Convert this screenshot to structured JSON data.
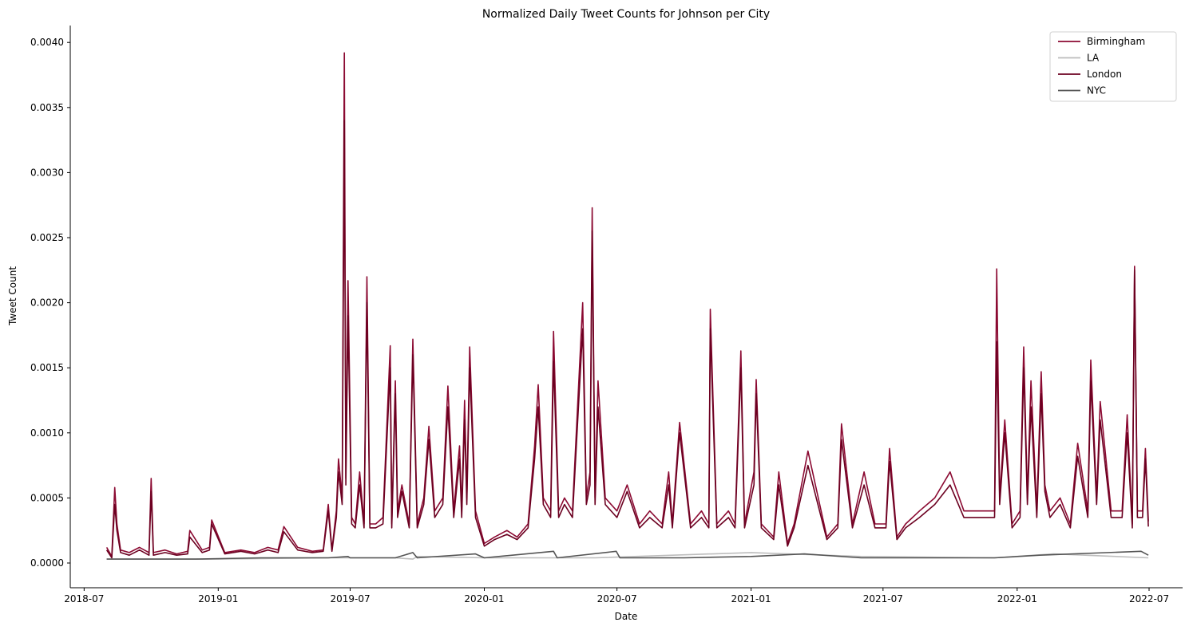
{
  "chart_data": {
    "type": "line",
    "title": "Normalized Daily Tweet Counts for Johnson per City",
    "xlabel": "Date",
    "ylabel": "Tweet Count",
    "xlim": [
      "2018-06-12",
      "2022-08-16"
    ],
    "ylim": [
      -0.00019,
      0.00413
    ],
    "x_ticks": [
      "2018-07",
      "2019-01",
      "2019-07",
      "2020-01",
      "2020-07",
      "2021-01",
      "2021-07",
      "2022-01",
      "2022-07"
    ],
    "y_ticks": [
      0.0,
      0.0005,
      0.001,
      0.0015,
      0.002,
      0.0025,
      0.003,
      0.0035,
      0.004
    ],
    "y_tick_labels": [
      "0.0000",
      "0.0005",
      "0.0010",
      "0.0015",
      "0.0020",
      "0.0025",
      "0.0030",
      "0.0035",
      "0.0040"
    ],
    "grid": false,
    "legend_position": "top-right",
    "series": [
      {
        "name": "Birmingham",
        "color": "#8b0a32",
        "x": [
          "2018-08-01",
          "2018-08-08",
          "2018-08-12",
          "2018-08-15",
          "2018-08-20",
          "2018-09-01",
          "2018-09-15",
          "2018-09-28",
          "2018-10-01",
          "2018-10-04",
          "2018-10-20",
          "2018-11-05",
          "2018-11-20",
          "2018-11-23",
          "2018-12-10",
          "2018-12-20",
          "2018-12-23",
          "2019-01-10",
          "2019-02-01",
          "2019-02-20",
          "2019-03-10",
          "2019-03-24",
          "2019-04-01",
          "2019-04-20",
          "2019-05-10",
          "2019-05-25",
          "2019-06-01",
          "2019-06-06",
          "2019-06-12",
          "2019-06-15",
          "2019-06-20",
          "2019-06-23",
          "2019-06-25",
          "2019-06-28",
          "2019-07-03",
          "2019-07-08",
          "2019-07-14",
          "2019-07-20",
          "2019-07-24",
          "2019-07-28",
          "2019-08-05",
          "2019-08-15",
          "2019-08-25",
          "2019-08-27",
          "2019-09-01",
          "2019-09-04",
          "2019-09-10",
          "2019-09-20",
          "2019-09-25",
          "2019-10-01",
          "2019-10-10",
          "2019-10-17",
          "2019-10-25",
          "2019-11-05",
          "2019-11-12",
          "2019-11-20",
          "2019-11-28",
          "2019-12-01",
          "2019-12-05",
          "2019-12-08",
          "2019-12-12",
          "2019-12-20",
          "2020-01-01",
          "2020-01-15",
          "2020-02-01",
          "2020-02-15",
          "2020-03-01",
          "2020-03-10",
          "2020-03-15",
          "2020-03-22",
          "2020-04-01",
          "2020-04-05",
          "2020-04-12",
          "2020-04-20",
          "2020-05-01",
          "2020-05-15",
          "2020-05-20",
          "2020-05-25",
          "2020-05-28",
          "2020-06-01",
          "2020-06-05",
          "2020-06-15",
          "2020-07-01",
          "2020-07-15",
          "2020-08-01",
          "2020-08-15",
          "2020-09-01",
          "2020-09-10",
          "2020-09-15",
          "2020-09-25",
          "2020-10-10",
          "2020-10-25",
          "2020-11-04",
          "2020-11-06",
          "2020-11-15",
          "2020-12-01",
          "2020-12-10",
          "2020-12-18",
          "2020-12-23",
          "2021-01-05",
          "2021-01-08",
          "2021-01-15",
          "2021-02-01",
          "2021-02-08",
          "2021-02-20",
          "2021-03-01",
          "2021-03-20",
          "2021-04-15",
          "2021-04-30",
          "2021-05-05",
          "2021-05-20",
          "2021-06-05",
          "2021-06-20",
          "2021-07-05",
          "2021-07-10",
          "2021-07-20",
          "2021-08-01",
          "2021-08-20",
          "2021-09-10",
          "2021-10-01",
          "2021-10-20",
          "2021-11-10",
          "2021-11-25",
          "2021-12-01",
          "2021-12-04",
          "2021-12-08",
          "2021-12-15",
          "2021-12-25",
          "2022-01-05",
          "2022-01-10",
          "2022-01-15",
          "2022-01-20",
          "2022-01-28",
          "2022-02-03",
          "2022-02-08",
          "2022-02-15",
          "2022-03-01",
          "2022-03-15",
          "2022-03-25",
          "2022-04-08",
          "2022-04-12",
          "2022-04-20",
          "2022-04-25",
          "2022-05-10",
          "2022-05-25",
          "2022-06-01",
          "2022-06-08",
          "2022-06-11",
          "2022-06-15",
          "2022-06-22",
          "2022-06-26",
          "2022-06-30"
        ],
        "values": [
          0.00012,
          5e-05,
          0.00058,
          0.0003,
          0.0001,
          8e-05,
          0.00012,
          8e-05,
          0.00065,
          8e-05,
          0.0001,
          7e-05,
          9e-05,
          0.00025,
          0.0001,
          0.00012,
          0.00033,
          8e-05,
          0.0001,
          8e-05,
          0.00012,
          0.0001,
          0.00028,
          0.00012,
          9e-05,
          0.0001,
          0.00045,
          0.0001,
          0.0004,
          0.0008,
          0.0005,
          0.00392,
          0.00065,
          0.00217,
          0.00035,
          0.0003,
          0.0007,
          0.0003,
          0.0022,
          0.0003,
          0.0003,
          0.00035,
          0.00167,
          0.0003,
          0.0014,
          0.0004,
          0.0006,
          0.0003,
          0.00172,
          0.0003,
          0.0005,
          0.00105,
          0.0004,
          0.0005,
          0.00136,
          0.0004,
          0.0009,
          0.0004,
          0.00125,
          0.0005,
          0.00166,
          0.0004,
          0.00015,
          0.0002,
          0.00025,
          0.0002,
          0.0003,
          0.0009,
          0.00137,
          0.0005,
          0.0004,
          0.00178,
          0.0004,
          0.0005,
          0.0004,
          0.002,
          0.0005,
          0.0007,
          0.00273,
          0.0005,
          0.0014,
          0.0005,
          0.0004,
          0.0006,
          0.0003,
          0.0004,
          0.0003,
          0.0007,
          0.0003,
          0.00108,
          0.0003,
          0.0004,
          0.0003,
          0.00195,
          0.0003,
          0.0004,
          0.0003,
          0.00163,
          0.0003,
          0.0007,
          0.00141,
          0.0003,
          0.0002,
          0.0007,
          0.00015,
          0.0003,
          0.00086,
          0.0002,
          0.0003,
          0.00107,
          0.0003,
          0.0007,
          0.0003,
          0.0003,
          0.00088,
          0.0002,
          0.0003,
          0.0004,
          0.0005,
          0.0007,
          0.0004,
          0.0004,
          0.0004,
          0.0004,
          0.00226,
          0.0005,
          0.0011,
          0.0003,
          0.0004,
          0.00166,
          0.0005,
          0.0014,
          0.0004,
          0.00147,
          0.0006,
          0.0004,
          0.0005,
          0.0003,
          0.00092,
          0.0004,
          0.00156,
          0.0005,
          0.00124,
          0.0004,
          0.0004,
          0.00114,
          0.0003,
          0.00228,
          0.0004,
          0.0004,
          0.00088,
          0.00032
        ]
      },
      {
        "name": "LA",
        "color": "#bdbdbd",
        "x": [
          "2018-08-01",
          "2019-01-01",
          "2019-06-01",
          "2019-09-01",
          "2019-09-25",
          "2019-10-01",
          "2020-01-01",
          "2020-06-01",
          "2021-01-01",
          "2021-06-01",
          "2021-12-01",
          "2022-02-20",
          "2022-06-30"
        ],
        "values": [
          3e-05,
          3e-05,
          4e-05,
          4e-05,
          3e-05,
          5e-05,
          4e-05,
          4e-05,
          8e-05,
          5e-05,
          4e-05,
          7e-05,
          4e-05
        ]
      },
      {
        "name": "London",
        "color": "#6b0020",
        "x": [
          "2018-08-01",
          "2018-08-08",
          "2018-08-12",
          "2018-08-15",
          "2018-08-20",
          "2018-09-01",
          "2018-09-15",
          "2018-09-28",
          "2018-10-01",
          "2018-10-04",
          "2018-10-20",
          "2018-11-05",
          "2018-11-20",
          "2018-11-23",
          "2018-12-10",
          "2018-12-20",
          "2018-12-23",
          "2019-01-10",
          "2019-02-01",
          "2019-02-20",
          "2019-03-10",
          "2019-03-24",
          "2019-04-01",
          "2019-04-20",
          "2019-05-10",
          "2019-05-25",
          "2019-06-01",
          "2019-06-06",
          "2019-06-12",
          "2019-06-15",
          "2019-06-20",
          "2019-06-23",
          "2019-06-25",
          "2019-06-28",
          "2019-07-03",
          "2019-07-08",
          "2019-07-14",
          "2019-07-20",
          "2019-07-24",
          "2019-07-28",
          "2019-08-05",
          "2019-08-15",
          "2019-08-25",
          "2019-08-27",
          "2019-09-01",
          "2019-09-04",
          "2019-09-10",
          "2019-09-20",
          "2019-09-25",
          "2019-10-01",
          "2019-10-10",
          "2019-10-17",
          "2019-10-25",
          "2019-11-05",
          "2019-11-12",
          "2019-11-20",
          "2019-11-28",
          "2019-12-01",
          "2019-12-05",
          "2019-12-08",
          "2019-12-12",
          "2019-12-20",
          "2020-01-01",
          "2020-01-15",
          "2020-02-01",
          "2020-02-15",
          "2020-03-01",
          "2020-03-10",
          "2020-03-15",
          "2020-03-22",
          "2020-04-01",
          "2020-04-05",
          "2020-04-12",
          "2020-04-20",
          "2020-05-01",
          "2020-05-15",
          "2020-05-20",
          "2020-05-25",
          "2020-05-28",
          "2020-06-01",
          "2020-06-05",
          "2020-06-15",
          "2020-07-01",
          "2020-07-15",
          "2020-08-01",
          "2020-08-15",
          "2020-09-01",
          "2020-09-10",
          "2020-09-15",
          "2020-09-25",
          "2020-10-10",
          "2020-10-25",
          "2020-11-04",
          "2020-11-06",
          "2020-11-15",
          "2020-12-01",
          "2020-12-10",
          "2020-12-18",
          "2020-12-23",
          "2021-01-05",
          "2021-01-08",
          "2021-01-15",
          "2021-02-01",
          "2021-02-08",
          "2021-02-20",
          "2021-03-01",
          "2021-03-20",
          "2021-04-15",
          "2021-04-30",
          "2021-05-05",
          "2021-05-20",
          "2021-06-05",
          "2021-06-20",
          "2021-07-05",
          "2021-07-10",
          "2021-07-20",
          "2021-08-01",
          "2021-08-20",
          "2021-09-10",
          "2021-10-01",
          "2021-10-20",
          "2021-11-10",
          "2021-11-25",
          "2021-12-01",
          "2021-12-04",
          "2021-12-08",
          "2021-12-15",
          "2021-12-25",
          "2022-01-05",
          "2022-01-10",
          "2022-01-15",
          "2022-01-20",
          "2022-01-28",
          "2022-02-03",
          "2022-02-08",
          "2022-02-15",
          "2022-03-01",
          "2022-03-15",
          "2022-03-25",
          "2022-04-08",
          "2022-04-12",
          "2022-04-20",
          "2022-04-25",
          "2022-05-10",
          "2022-05-25",
          "2022-06-01",
          "2022-06-08",
          "2022-06-11",
          "2022-06-15",
          "2022-06-22",
          "2022-06-26",
          "2022-06-30"
        ],
        "values": [
          0.0001,
          4e-05,
          0.00045,
          0.00025,
          8e-05,
          6e-05,
          0.0001,
          6e-05,
          0.00055,
          6e-05,
          8e-05,
          6e-05,
          7e-05,
          0.0002,
          8e-05,
          0.0001,
          0.0003,
          7e-05,
          9e-05,
          7e-05,
          0.0001,
          8e-05,
          0.00024,
          0.0001,
          8e-05,
          9e-05,
          0.0004,
          9e-05,
          0.00035,
          0.0007,
          0.00045,
          0.0034,
          0.0006,
          0.0019,
          0.0003,
          0.00027,
          0.0006,
          0.00027,
          0.002,
          0.00027,
          0.00027,
          0.0003,
          0.0015,
          0.00027,
          0.0013,
          0.00035,
          0.00055,
          0.00027,
          0.0016,
          0.00027,
          0.00045,
          0.00095,
          0.00035,
          0.00045,
          0.0012,
          0.00035,
          0.0008,
          0.00035,
          0.0011,
          0.00045,
          0.0015,
          0.00035,
          0.00013,
          0.00018,
          0.00022,
          0.00018,
          0.00027,
          0.0008,
          0.0012,
          0.00045,
          0.00035,
          0.00155,
          0.00035,
          0.00045,
          0.00035,
          0.0018,
          0.00045,
          0.0006,
          0.00255,
          0.00045,
          0.0012,
          0.00045,
          0.00035,
          0.00055,
          0.00027,
          0.00035,
          0.00027,
          0.0006,
          0.00027,
          0.001,
          0.00027,
          0.00035,
          0.00027,
          0.0018,
          0.00027,
          0.00035,
          0.00027,
          0.0015,
          0.00027,
          0.0006,
          0.0013,
          0.00027,
          0.00018,
          0.0006,
          0.00013,
          0.00027,
          0.00075,
          0.00018,
          0.00027,
          0.00095,
          0.00027,
          0.0006,
          0.00027,
          0.00027,
          0.00078,
          0.00018,
          0.00027,
          0.00035,
          0.00045,
          0.0006,
          0.00035,
          0.00035,
          0.00035,
          0.00035,
          0.0017,
          0.00045,
          0.001,
          0.00027,
          0.00035,
          0.0015,
          0.00045,
          0.0012,
          0.00035,
          0.0013,
          0.00055,
          0.00035,
          0.00045,
          0.00027,
          0.00082,
          0.00035,
          0.0014,
          0.00045,
          0.0011,
          0.00035,
          0.00035,
          0.001,
          0.00027,
          0.00225,
          0.00035,
          0.00035,
          0.0008,
          0.00028
        ]
      },
      {
        "name": "NYC",
        "color": "#555555",
        "x": [
          "2018-08-01",
          "2018-12-01",
          "2019-03-01",
          "2019-06-01",
          "2019-06-28",
          "2019-07-01",
          "2019-09-01",
          "2019-09-25",
          "2019-10-01",
          "2019-12-20",
          "2020-01-01",
          "2020-04-05",
          "2020-04-10",
          "2020-06-30",
          "2020-07-05",
          "2020-10-01",
          "2021-01-01",
          "2021-03-15",
          "2021-06-01",
          "2021-09-01",
          "2021-12-01",
          "2022-02-01",
          "2022-06-20",
          "2022-06-30"
        ],
        "values": [
          3e-05,
          3e-05,
          4e-05,
          4e-05,
          5e-05,
          4e-05,
          4e-05,
          8e-05,
          4e-05,
          7e-05,
          4e-05,
          9e-05,
          4e-05,
          9e-05,
          4e-05,
          4e-05,
          5e-05,
          7e-05,
          4e-05,
          4e-05,
          4e-05,
          6e-05,
          9e-05,
          6e-05
        ]
      }
    ]
  }
}
